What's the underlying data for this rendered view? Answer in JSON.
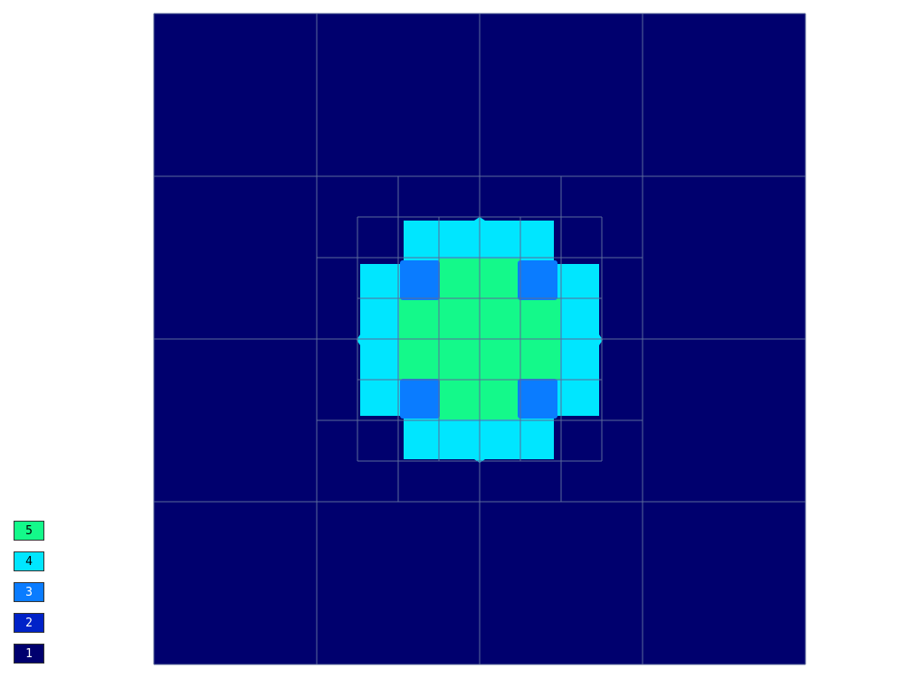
{
  "colors": {
    "level_1": "#00006e",
    "level_2": "#0022c8",
    "level_3": "#0a7cff",
    "level_4": "#00e6ff",
    "level_5": "#14f98a",
    "grid_line": "#5a6a9a",
    "background": "#ffffff"
  },
  "chart_data": {
    "type": "heatmap",
    "description_free": true,
    "levels": [
      1,
      2,
      3,
      4,
      5
    ],
    "legend": [
      {
        "label": "5",
        "color": "#14f98a"
      },
      {
        "label": "4",
        "color": "#00e6ff"
      },
      {
        "label": "3",
        "color": "#0a7cff"
      },
      {
        "label": "2",
        "color": "#0022c8"
      },
      {
        "label": "1",
        "color": "#00006e"
      }
    ],
    "grid_levels_of_refinement": 3,
    "regions": [
      {
        "level": 1,
        "shape": "background"
      },
      {
        "level": 4,
        "shape": "cross-outer"
      },
      {
        "level": 3,
        "shape": "corner-squares"
      },
      {
        "level": 5,
        "shape": "cross-inner"
      }
    ]
  }
}
